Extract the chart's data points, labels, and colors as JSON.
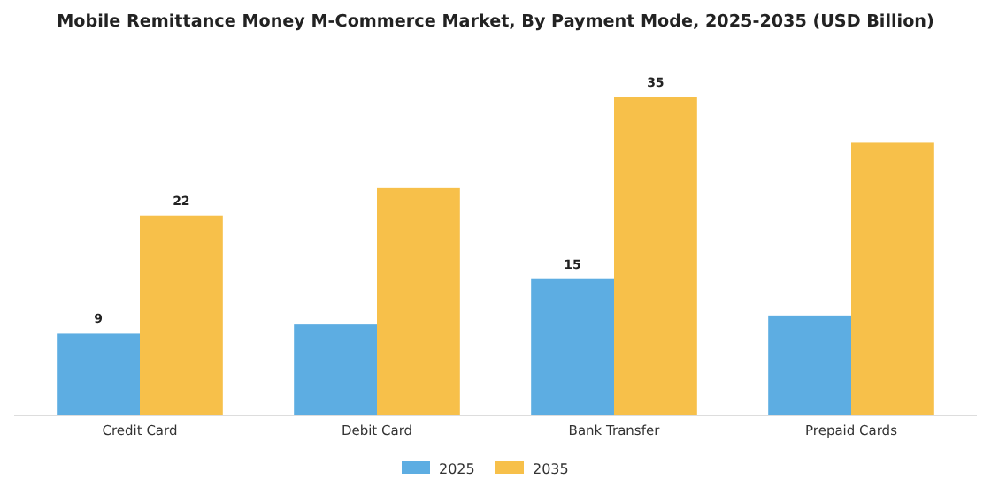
{
  "chart_data": {
    "type": "bar",
    "title": "Mobile Remittance Money M-Commerce Market, By Payment Mode, 2025-2035 (USD Billion)",
    "categories": [
      "Credit Card",
      "Debit Card",
      "Bank Transfer",
      "Prepaid Cards"
    ],
    "series": [
      {
        "name": "2025",
        "color": "#5dade2",
        "values": [
          9,
          10,
          15,
          11
        ],
        "value_labels": [
          "9",
          null,
          "15",
          null
        ]
      },
      {
        "name": "2035",
        "color": "#f7c04a",
        "values": [
          22,
          25,
          35,
          30
        ],
        "value_labels": [
          "22",
          null,
          "35",
          null
        ]
      }
    ],
    "legend": "bottom"
  }
}
